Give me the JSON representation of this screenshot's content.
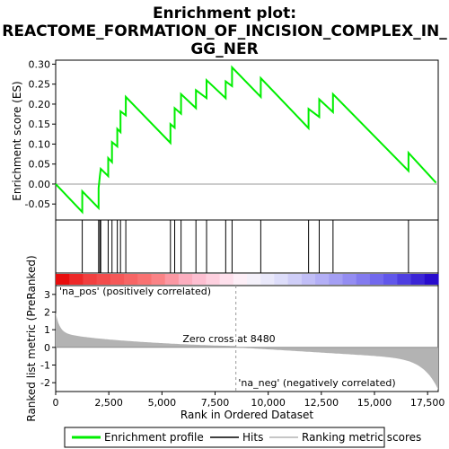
{
  "chart_data": {
    "type": "line",
    "title_lines": [
      "Enrichment plot:",
      "REACTOME_FORMATION_OF_INCISION_COMPLEX_IN_",
      "GG_NER"
    ],
    "ylabel_top": "Enrichment score (ES)",
    "ylabel_bottom": "Ranked list metric (PreRanked)",
    "xlabel": "Rank in Ordered Dataset",
    "x_range": [
      0,
      18000
    ],
    "es_range": [
      -0.09,
      0.31
    ],
    "metric_range": [
      -2.5,
      3.5
    ],
    "x_ticks": [
      0,
      2500,
      5000,
      7500,
      10000,
      12500,
      15000,
      17500
    ],
    "x_tick_labels": [
      "0",
      "2,500",
      "5,000",
      "7,500",
      "10,000",
      "12,500",
      "15,000",
      "17,500"
    ],
    "es_ticks": [
      -0.05,
      0.0,
      0.05,
      0.1,
      0.15,
      0.2,
      0.25,
      0.3
    ],
    "es_tick_labels": [
      "-0.05",
      "0.00",
      "0.05",
      "0.10",
      "0.15",
      "0.20",
      "0.25",
      "0.30"
    ],
    "metric_ticks": [
      -2,
      -1,
      0,
      1,
      2,
      3
    ],
    "metric_tick_labels": [
      "-2",
      "-1",
      "0",
      "1",
      "2",
      "3"
    ],
    "hits": [
      1250,
      2020,
      2080,
      2120,
      2470,
      2650,
      2900,
      3050,
      3300,
      5400,
      5600,
      5900,
      6600,
      7100,
      8000,
      8300,
      9650,
      11900,
      12400,
      13050,
      16600
    ],
    "es_points": [
      {
        "x": 0,
        "y": 0.0
      },
      {
        "x": 1250,
        "y": -0.07
      },
      {
        "x": 1250,
        "y": -0.018
      },
      {
        "x": 2020,
        "y": -0.06
      },
      {
        "x": 2020,
        "y": -0.01
      },
      {
        "x": 2080,
        "y": 0.02
      },
      {
        "x": 2120,
        "y": 0.038
      },
      {
        "x": 2470,
        "y": 0.02
      },
      {
        "x": 2470,
        "y": 0.065
      },
      {
        "x": 2650,
        "y": 0.055
      },
      {
        "x": 2650,
        "y": 0.105
      },
      {
        "x": 2900,
        "y": 0.094
      },
      {
        "x": 2900,
        "y": 0.138
      },
      {
        "x": 3050,
        "y": 0.13
      },
      {
        "x": 3050,
        "y": 0.182
      },
      {
        "x": 3300,
        "y": 0.172
      },
      {
        "x": 3300,
        "y": 0.218
      },
      {
        "x": 5400,
        "y": 0.103
      },
      {
        "x": 5400,
        "y": 0.15
      },
      {
        "x": 5600,
        "y": 0.141
      },
      {
        "x": 5600,
        "y": 0.19
      },
      {
        "x": 5900,
        "y": 0.176
      },
      {
        "x": 5900,
        "y": 0.225
      },
      {
        "x": 6600,
        "y": 0.19
      },
      {
        "x": 6600,
        "y": 0.235
      },
      {
        "x": 7100,
        "y": 0.215
      },
      {
        "x": 7100,
        "y": 0.26
      },
      {
        "x": 8000,
        "y": 0.215
      },
      {
        "x": 8000,
        "y": 0.257
      },
      {
        "x": 8300,
        "y": 0.245
      },
      {
        "x": 8300,
        "y": 0.292
      },
      {
        "x": 9650,
        "y": 0.218
      },
      {
        "x": 9650,
        "y": 0.265
      },
      {
        "x": 11900,
        "y": 0.14
      },
      {
        "x": 11900,
        "y": 0.188
      },
      {
        "x": 12400,
        "y": 0.168
      },
      {
        "x": 12400,
        "y": 0.212
      },
      {
        "x": 13050,
        "y": 0.18
      },
      {
        "x": 13050,
        "y": 0.225
      },
      {
        "x": 16600,
        "y": 0.033
      },
      {
        "x": 16600,
        "y": 0.078
      },
      {
        "x": 17900,
        "y": 0.003
      }
    ],
    "zero_cross": 8480,
    "zero_cross_label": "Zero cross at 8480",
    "pos_label": "'na_pos' (positively correlated)",
    "neg_label": "'na_neg' (negatively correlated)",
    "legend": [
      "Enrichment profile",
      "Hits",
      "Ranking metric scores"
    ],
    "colors": {
      "es_line": "#00ee00",
      "pos_label": "#cc0000",
      "neg_label": "#0000cc",
      "metric_fill": "#b3b3b3",
      "zero_line": "#b3b3b3"
    }
  }
}
